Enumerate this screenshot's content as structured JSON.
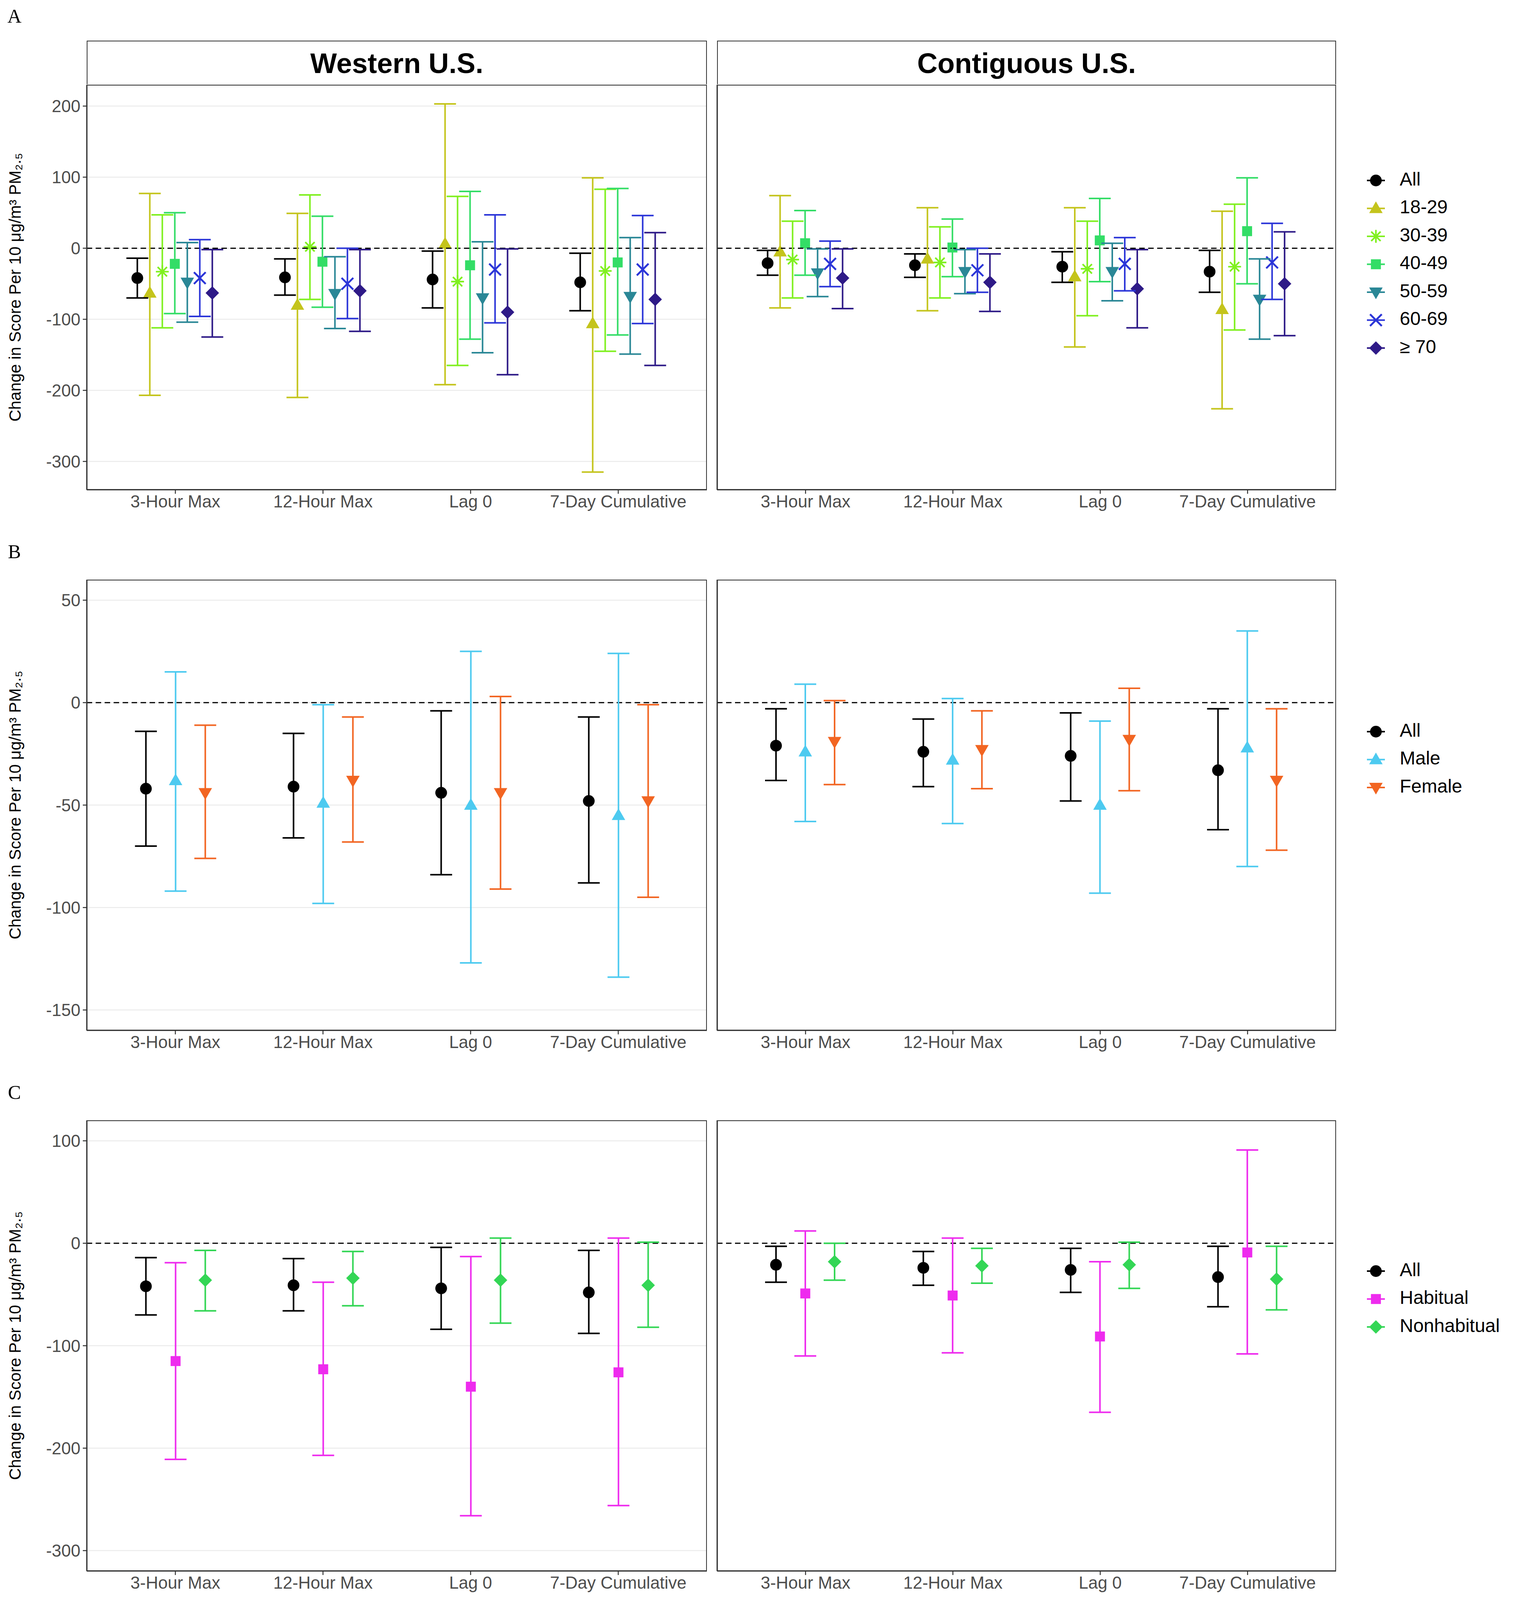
{
  "chart_data": [
    {
      "type": "scatter",
      "title": "Western U.S.",
      "annotation": "A",
      "y_label": "Change in Score Per 10 μg/m³ PM₂.₅",
      "categories": [
        "3-Hour Max",
        "12-Hour Max",
        "Lag 0",
        "7-Day Cumulative"
      ],
      "ylim": [
        -340,
        230
      ],
      "yticks": [
        -300,
        -200,
        -100,
        0,
        100,
        200
      ],
      "grid": true,
      "reference_line": {
        "y": 0,
        "line_style": "dashed"
      },
      "series": [
        {
          "name": "All",
          "color": "#000000",
          "marker": "circle",
          "values": [
            -42,
            -41,
            -44,
            -48
          ],
          "ci_lower": [
            -70,
            -66,
            -84,
            -88
          ],
          "ci_upper": [
            -14,
            -15,
            -4,
            -7
          ]
        },
        {
          "name": "18-29",
          "color": "#c4c41c",
          "marker": "triangle",
          "values": [
            -63,
            -80,
            6,
            -106
          ],
          "ci_lower": [
            -207,
            -210,
            -192,
            -315
          ],
          "ci_upper": [
            77,
            49,
            203,
            99
          ]
        },
        {
          "name": "30-39",
          "color": "#80f020",
          "marker": "asterisk",
          "values": [
            -33,
            2,
            -47,
            -32
          ],
          "ci_lower": [
            -112,
            -72,
            -165,
            -145
          ],
          "ci_upper": [
            47,
            75,
            73,
            83
          ]
        },
        {
          "name": "40-49",
          "color": "#33dd66",
          "marker": "square",
          "values": [
            -22,
            -19,
            -24,
            -20
          ],
          "ci_lower": [
            -92,
            -83,
            -128,
            -122
          ],
          "ci_upper": [
            50,
            45,
            80,
            84
          ]
        },
        {
          "name": "50-59",
          "color": "#2a8796",
          "marker": "triangle-down",
          "values": [
            -48,
            -64,
            -70,
            -68
          ],
          "ci_lower": [
            -104,
            -113,
            -147,
            -149
          ],
          "ci_upper": [
            8,
            -12,
            9,
            15
          ]
        },
        {
          "name": "60-69",
          "color": "#2b35d8",
          "marker": "x",
          "values": [
            -42,
            -50,
            -30,
            -30
          ],
          "ci_lower": [
            -96,
            -99,
            -105,
            -106
          ],
          "ci_upper": [
            12,
            0,
            47,
            46
          ]
        },
        {
          "name": "≥ 70",
          "color": "#2e1a87",
          "marker": "diamond",
          "values": [
            -63,
            -60,
            -90,
            -72
          ],
          "ci_lower": [
            -125,
            -117,
            -178,
            -165
          ],
          "ci_upper": [
            -2,
            -2,
            -1,
            22
          ]
        }
      ]
    },
    {
      "type": "scatter",
      "title": "Contiguous U.S.",
      "categories": [
        "3-Hour Max",
        "12-Hour Max",
        "Lag 0",
        "7-Day Cumulative"
      ],
      "ylim": [
        -340,
        230
      ],
      "yticks": [
        -300,
        -200,
        -100,
        0,
        100,
        200
      ],
      "grid": true,
      "tick_labels": "x",
      "legend": "right",
      "reference_line": {
        "y": 0,
        "line_style": "dashed"
      },
      "series": [
        {
          "name": "All",
          "color": "#000000",
          "marker": "circle",
          "values": [
            -21,
            -24,
            -26,
            -33
          ],
          "ci_lower": [
            -38,
            -41,
            -48,
            -62
          ],
          "ci_upper": [
            -3,
            -8,
            -5,
            -3
          ]
        },
        {
          "name": "18-29",
          "color": "#c4c41c",
          "marker": "triangle",
          "values": [
            -5,
            -15,
            -40,
            -86
          ],
          "ci_lower": [
            -84,
            -88,
            -139,
            -226
          ],
          "ci_upper": [
            74,
            57,
            57,
            52
          ]
        },
        {
          "name": "30-39",
          "color": "#80f020",
          "marker": "asterisk",
          "values": [
            -16,
            -20,
            -29,
            -26
          ],
          "ci_lower": [
            -70,
            -70,
            -95,
            -115
          ],
          "ci_upper": [
            38,
            30,
            38,
            62
          ]
        },
        {
          "name": "40-49",
          "color": "#33dd66",
          "marker": "square",
          "values": [
            7,
            1,
            11,
            24
          ],
          "ci_lower": [
            -38,
            -40,
            -47,
            -50
          ],
          "ci_upper": [
            53,
            41,
            70,
            99
          ]
        },
        {
          "name": "50-59",
          "color": "#2a8796",
          "marker": "triangle-down",
          "values": [
            -35,
            -33,
            -33,
            -72
          ],
          "ci_lower": [
            -68,
            -64,
            -74,
            -128
          ],
          "ci_upper": [
            -1,
            -2,
            7,
            -15
          ]
        },
        {
          "name": "60-69",
          "color": "#2b35d8",
          "marker": "x",
          "values": [
            -22,
            -31,
            -22,
            -20
          ],
          "ci_lower": [
            -54,
            -62,
            -60,
            -72
          ],
          "ci_upper": [
            10,
            0,
            15,
            35
          ]
        },
        {
          "name": "≥ 70",
          "color": "#2e1a87",
          "marker": "diamond",
          "values": [
            -42,
            -48,
            -57,
            -50
          ],
          "ci_lower": [
            -85,
            -89,
            -112,
            -123
          ],
          "ci_upper": [
            -1,
            -8,
            -2,
            23
          ]
        }
      ]
    },
    {
      "type": "scatter",
      "annotation": "B",
      "y_label": "Change in Score Per 10 μg/m³ PM₂.₅",
      "categories": [
        "3-Hour Max",
        "12-Hour Max",
        "Lag 0",
        "7-Day Cumulative"
      ],
      "ylim": [
        -160,
        60
      ],
      "yticks": [
        -150,
        -100,
        -50,
        0,
        50
      ],
      "grid": true,
      "reference_line": {
        "y": 0,
        "line_style": "dashed"
      },
      "series": [
        {
          "name": "All",
          "color": "#000000",
          "marker": "circle",
          "values": [
            -42,
            -41,
            -44,
            -48
          ],
          "ci_lower": [
            -70,
            -66,
            -84,
            -88
          ],
          "ci_upper": [
            -14,
            -15,
            -4,
            -7
          ]
        },
        {
          "name": "Male",
          "color": "#4dcaf0",
          "marker": "triangle",
          "values": [
            -38,
            -49,
            -50,
            -55
          ],
          "ci_lower": [
            -92,
            -98,
            -127,
            -134
          ],
          "ci_upper": [
            15,
            -1,
            25,
            24
          ]
        },
        {
          "name": "Female",
          "color": "#f26522",
          "marker": "triangle-down",
          "values": [
            -44,
            -38,
            -44,
            -48
          ],
          "ci_lower": [
            -76,
            -68,
            -91,
            -95
          ],
          "ci_upper": [
            -11,
            -7,
            3,
            -1
          ]
        }
      ]
    },
    {
      "type": "scatter",
      "categories": [
        "3-Hour Max",
        "12-Hour Max",
        "Lag 0",
        "7-Day Cumulative"
      ],
      "ylim": [
        -160,
        60
      ],
      "yticks": [
        -150,
        -100,
        -50,
        0,
        50
      ],
      "grid": true,
      "tick_labels": "x",
      "legend": "right",
      "reference_line": {
        "y": 0,
        "line_style": "dashed"
      },
      "series": [
        {
          "name": "All",
          "color": "#000000",
          "marker": "circle",
          "values": [
            -21,
            -24,
            -26,
            -33
          ],
          "ci_lower": [
            -38,
            -41,
            -48,
            -62
          ],
          "ci_upper": [
            -3,
            -8,
            -5,
            -3
          ]
        },
        {
          "name": "Male",
          "color": "#4dcaf0",
          "marker": "triangle",
          "values": [
            -24,
            -28,
            -50,
            -22
          ],
          "ci_lower": [
            -58,
            -59,
            -93,
            -80
          ],
          "ci_upper": [
            9,
            2,
            -9,
            35
          ]
        },
        {
          "name": "Female",
          "color": "#f26522",
          "marker": "triangle-down",
          "values": [
            -19,
            -23,
            -18,
            -38
          ],
          "ci_lower": [
            -40,
            -42,
            -43,
            -72
          ],
          "ci_upper": [
            1,
            -4,
            7,
            -3
          ]
        }
      ]
    },
    {
      "type": "scatter",
      "annotation": "C",
      "y_label": "Change in Score Per 10 μg/m³ PM₂.₅",
      "categories": [
        "3-Hour Max",
        "12-Hour Max",
        "Lag 0",
        "7-Day Cumulative"
      ],
      "ylim": [
        -320,
        120
      ],
      "yticks": [
        -300,
        -200,
        -100,
        0,
        100
      ],
      "grid": true,
      "reference_line": {
        "y": 0,
        "line_style": "dashed"
      },
      "series": [
        {
          "name": "All",
          "color": "#000000",
          "marker": "circle",
          "values": [
            -42,
            -41,
            -44,
            -48
          ],
          "ci_lower": [
            -70,
            -66,
            -84,
            -88
          ],
          "ci_upper": [
            -14,
            -15,
            -4,
            -7
          ]
        },
        {
          "name": "Habitual",
          "color": "#ee2bee",
          "marker": "square",
          "values": [
            -115,
            -123,
            -140,
            -126
          ],
          "ci_lower": [
            -211,
            -207,
            -266,
            -256
          ],
          "ci_upper": [
            -19,
            -38,
            -13,
            5
          ]
        },
        {
          "name": "Nonhabitual",
          "color": "#33d655",
          "marker": "diamond",
          "values": [
            -36,
            -34,
            -36,
            -41
          ],
          "ci_lower": [
            -66,
            -61,
            -78,
            -82
          ],
          "ci_upper": [
            -7,
            -8,
            5,
            1
          ]
        }
      ]
    },
    {
      "type": "scatter",
      "categories": [
        "3-Hour Max",
        "12-Hour Max",
        "Lag 0",
        "7-Day Cumulative"
      ],
      "ylim": [
        -320,
        120
      ],
      "yticks": [
        -300,
        -200,
        -100,
        0,
        100
      ],
      "grid": true,
      "tick_labels": "x",
      "legend": "right",
      "reference_line": {
        "y": 0,
        "line_style": "dashed"
      },
      "series": [
        {
          "name": "All",
          "color": "#000000",
          "marker": "circle",
          "values": [
            -21,
            -24,
            -26,
            -33
          ],
          "ci_lower": [
            -38,
            -41,
            -48,
            -62
          ],
          "ci_upper": [
            -3,
            -8,
            -5,
            -3
          ]
        },
        {
          "name": "Habitual",
          "color": "#ee2bee",
          "marker": "square",
          "values": [
            -49,
            -51,
            -91,
            -9
          ],
          "ci_lower": [
            -110,
            -107,
            -165,
            -108
          ],
          "ci_upper": [
            12,
            5,
            -18,
            91
          ]
        },
        {
          "name": "Nonhabitual",
          "color": "#33d655",
          "marker": "diamond",
          "values": [
            -18,
            -22,
            -21,
            -35
          ],
          "ci_lower": [
            -36,
            -39,
            -44,
            -65
          ],
          "ci_upper": [
            0,
            -5,
            1,
            -3
          ]
        }
      ]
    }
  ]
}
